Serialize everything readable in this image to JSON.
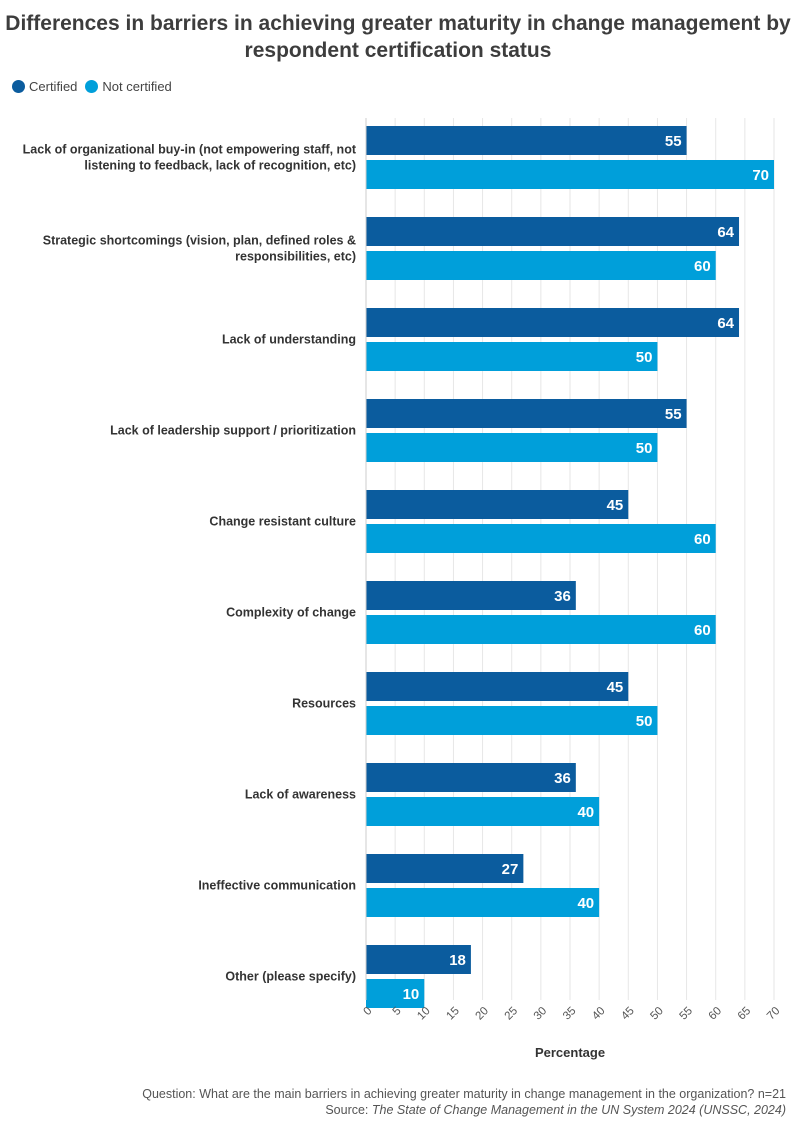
{
  "chart_data": {
    "type": "bar",
    "orientation": "horizontal",
    "title": "Differences in barriers in achieving greater maturity in change management by respondent certification status",
    "xlabel": "Percentage",
    "xlim": [
      0,
      70
    ],
    "xticks": [
      0,
      5,
      10,
      15,
      20,
      25,
      30,
      35,
      40,
      45,
      50,
      55,
      60,
      65,
      70
    ],
    "grid": true,
    "legend_position": "top-left",
    "categories": [
      "Lack of organizational buy-in (not empowering staff, not listening to feedback, lack of recognition, etc)",
      "Strategic shortcomings (vision, plan, defined roles & responsibilities, etc)",
      "Lack of understanding",
      "Lack of leadership support / prioritization",
      "Change resistant culture",
      "Complexity of change",
      "Resources",
      "Lack of awareness",
      "Ineffective communication",
      "Other (please specify)"
    ],
    "series": [
      {
        "name": "Certified",
        "color": "#0b5c9e",
        "values": [
          55,
          64,
          64,
          55,
          45,
          36,
          45,
          36,
          27,
          18
        ]
      },
      {
        "name": "Not certified",
        "color": "#009fda",
        "values": [
          70,
          60,
          50,
          50,
          60,
          60,
          50,
          40,
          40,
          10
        ]
      }
    ]
  },
  "footer": {
    "question": "Question: What are the main barriers in achieving greater maturity in change management in the organization? n=21",
    "source_prefix": "Source: ",
    "source_title": "The State of Change Management in the UN System 2024 (UNSSC, 2024)"
  }
}
